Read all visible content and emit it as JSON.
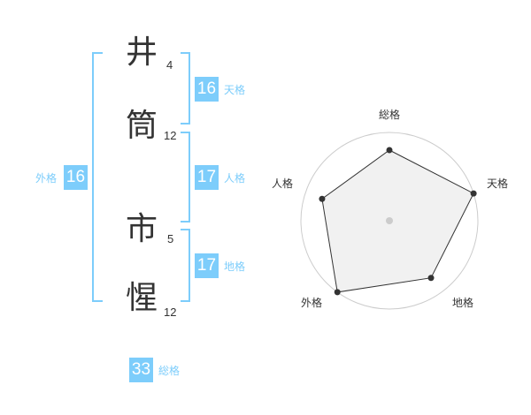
{
  "name": [
    {
      "char": "井",
      "strokes": "4"
    },
    {
      "char": "筒",
      "strokes": "12"
    },
    {
      "char": "市",
      "strokes": "5"
    },
    {
      "char": "惺",
      "strokes": "12"
    }
  ],
  "fortunes": {
    "tenkaku": {
      "label": "天格",
      "value": "16"
    },
    "jinkaku": {
      "label": "人格",
      "value": "17"
    },
    "chikaku": {
      "label": "地格",
      "value": "17"
    },
    "gaikaku": {
      "label": "外格",
      "value": "16"
    },
    "soukaku": {
      "label": "総格",
      "value": "33"
    }
  },
  "accent": "#7dcdfb",
  "chart_data": {
    "type": "radar",
    "axes": [
      "総格",
      "天格",
      "地格",
      "外格",
      "人格"
    ],
    "values": [
      4,
      5,
      4,
      5,
      4
    ],
    "range": [
      0,
      5
    ],
    "rings": 5
  }
}
